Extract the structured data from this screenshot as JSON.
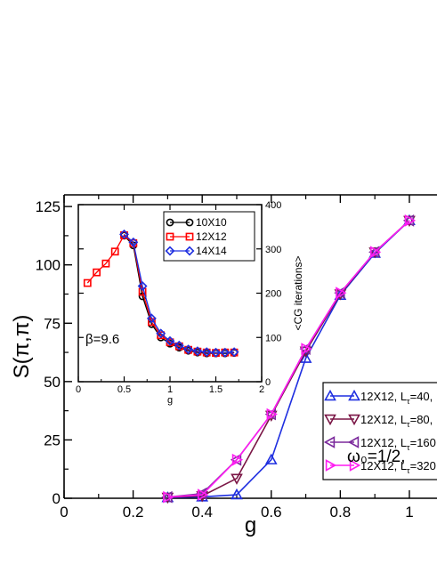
{
  "chart_data": [
    {
      "type": "line",
      "role": "main",
      "xlabel": "g",
      "ylabel": "S(π,π)",
      "xlim": [
        0,
        1.08
      ],
      "ylim": [
        0,
        130
      ],
      "x_ticks": [
        0,
        0.2,
        0.4,
        0.6,
        0.8,
        1
      ],
      "x_tick_labels": [
        "0",
        "0.2",
        "0.4",
        "0.6",
        "0.8",
        "1"
      ],
      "y_ticks": [
        0,
        25,
        50,
        75,
        100,
        125
      ],
      "y_tick_labels": [
        "0",
        "25",
        "50",
        "75",
        "100",
        "125"
      ],
      "grid": false,
      "legend_placement": "right",
      "annotation": "ω₀=1/2,",
      "series": [
        {
          "name_prefix": "12X12, L",
          "name_sub": "τ",
          "name_suffix": "=40,",
          "color": "#1f2fe0",
          "marker": "triangle-up",
          "x": [
            0.3,
            0.4,
            0.5,
            0.6,
            0.7,
            0.8,
            0.9,
            1.0
          ],
          "y": [
            0.3,
            0.6,
            1.5,
            16.5,
            60,
            87,
            105,
            119
          ]
        },
        {
          "name_prefix": "12X12, L",
          "name_sub": "τ",
          "name_suffix": "=80,",
          "color": "#7a1545",
          "marker": "triangle-down",
          "x": [
            0.3,
            0.4,
            0.5,
            0.6,
            0.7,
            0.8,
            0.9,
            1.0
          ],
          "y": [
            0.4,
            1.0,
            8.5,
            35.5,
            63,
            87.5,
            105.5,
            119
          ]
        },
        {
          "name_prefix": "12X12, L",
          "name_sub": "τ",
          "name_suffix": "=160",
          "color": "#7b2a9c",
          "marker": "triangle-left",
          "x": [
            0.3,
            0.4,
            0.5,
            0.6,
            0.7,
            0.8,
            0.9,
            1.0
          ],
          "y": [
            0.5,
            2.0,
            16.5,
            36,
            64,
            88,
            105.5,
            119
          ]
        },
        {
          "name_prefix": "12X12, L",
          "name_sub": "τ",
          "name_suffix": "=320",
          "color": "#ff1cf2",
          "marker": "triangle-right",
          "x": [
            0.3,
            0.4,
            0.5,
            0.6,
            0.7,
            0.8,
            0.9,
            1.0
          ],
          "y": [
            0.5,
            1.5,
            16.5,
            36,
            64,
            88,
            105.5,
            119
          ]
        }
      ]
    },
    {
      "type": "line",
      "role": "inset",
      "xlabel": "g",
      "ylabel": "<CG iterations>",
      "xlim": [
        0,
        2
      ],
      "ylim": [
        0,
        400
      ],
      "x_ticks": [
        0,
        0.5,
        1,
        1.5,
        2
      ],
      "x_tick_labels": [
        "0",
        "0.5",
        "1",
        "1.5",
        "2"
      ],
      "y_ticks": [
        0,
        100,
        200,
        300,
        400
      ],
      "y_tick_labels": [
        "0",
        "100",
        "200",
        "300",
        "400"
      ],
      "y_axis_side": "right",
      "grid": false,
      "legend_placement": "top-right",
      "annotation": "β=9.6",
      "series": [
        {
          "name": "10X10",
          "color": "#000000",
          "marker": "circle",
          "x": [
            0.5,
            0.6,
            0.7,
            0.8,
            0.9,
            1.0,
            1.1,
            1.2,
            1.3,
            1.4,
            1.5,
            1.6,
            1.7
          ],
          "y": [
            330,
            308,
            193,
            130,
            100,
            86,
            77,
            70,
            66,
            64,
            64,
            64,
            65
          ]
        },
        {
          "name": "12X12",
          "color": "#ff0000",
          "marker": "square",
          "x": [
            0.1,
            0.2,
            0.3,
            0.4,
            0.5,
            0.6,
            0.7,
            0.8,
            0.9,
            1.0,
            1.1,
            1.2,
            1.3,
            1.4,
            1.5,
            1.6,
            1.7
          ],
          "y": [
            223,
            247,
            267,
            294,
            331,
            313,
            203,
            135,
            105,
            89,
            80,
            72,
            68,
            66,
            65,
            66,
            66
          ]
        },
        {
          "name": "14X14",
          "color": "#1f2fe0",
          "marker": "diamond",
          "x": [
            0.5,
            0.6,
            0.7,
            0.8,
            0.9,
            1.0,
            1.1,
            1.2,
            1.3,
            1.4,
            1.5,
            1.6,
            1.7
          ],
          "y": [
            333,
            315,
            216,
            143,
            109,
            92,
            82,
            73,
            69,
            67,
            66,
            66,
            67
          ]
        }
      ]
    }
  ]
}
